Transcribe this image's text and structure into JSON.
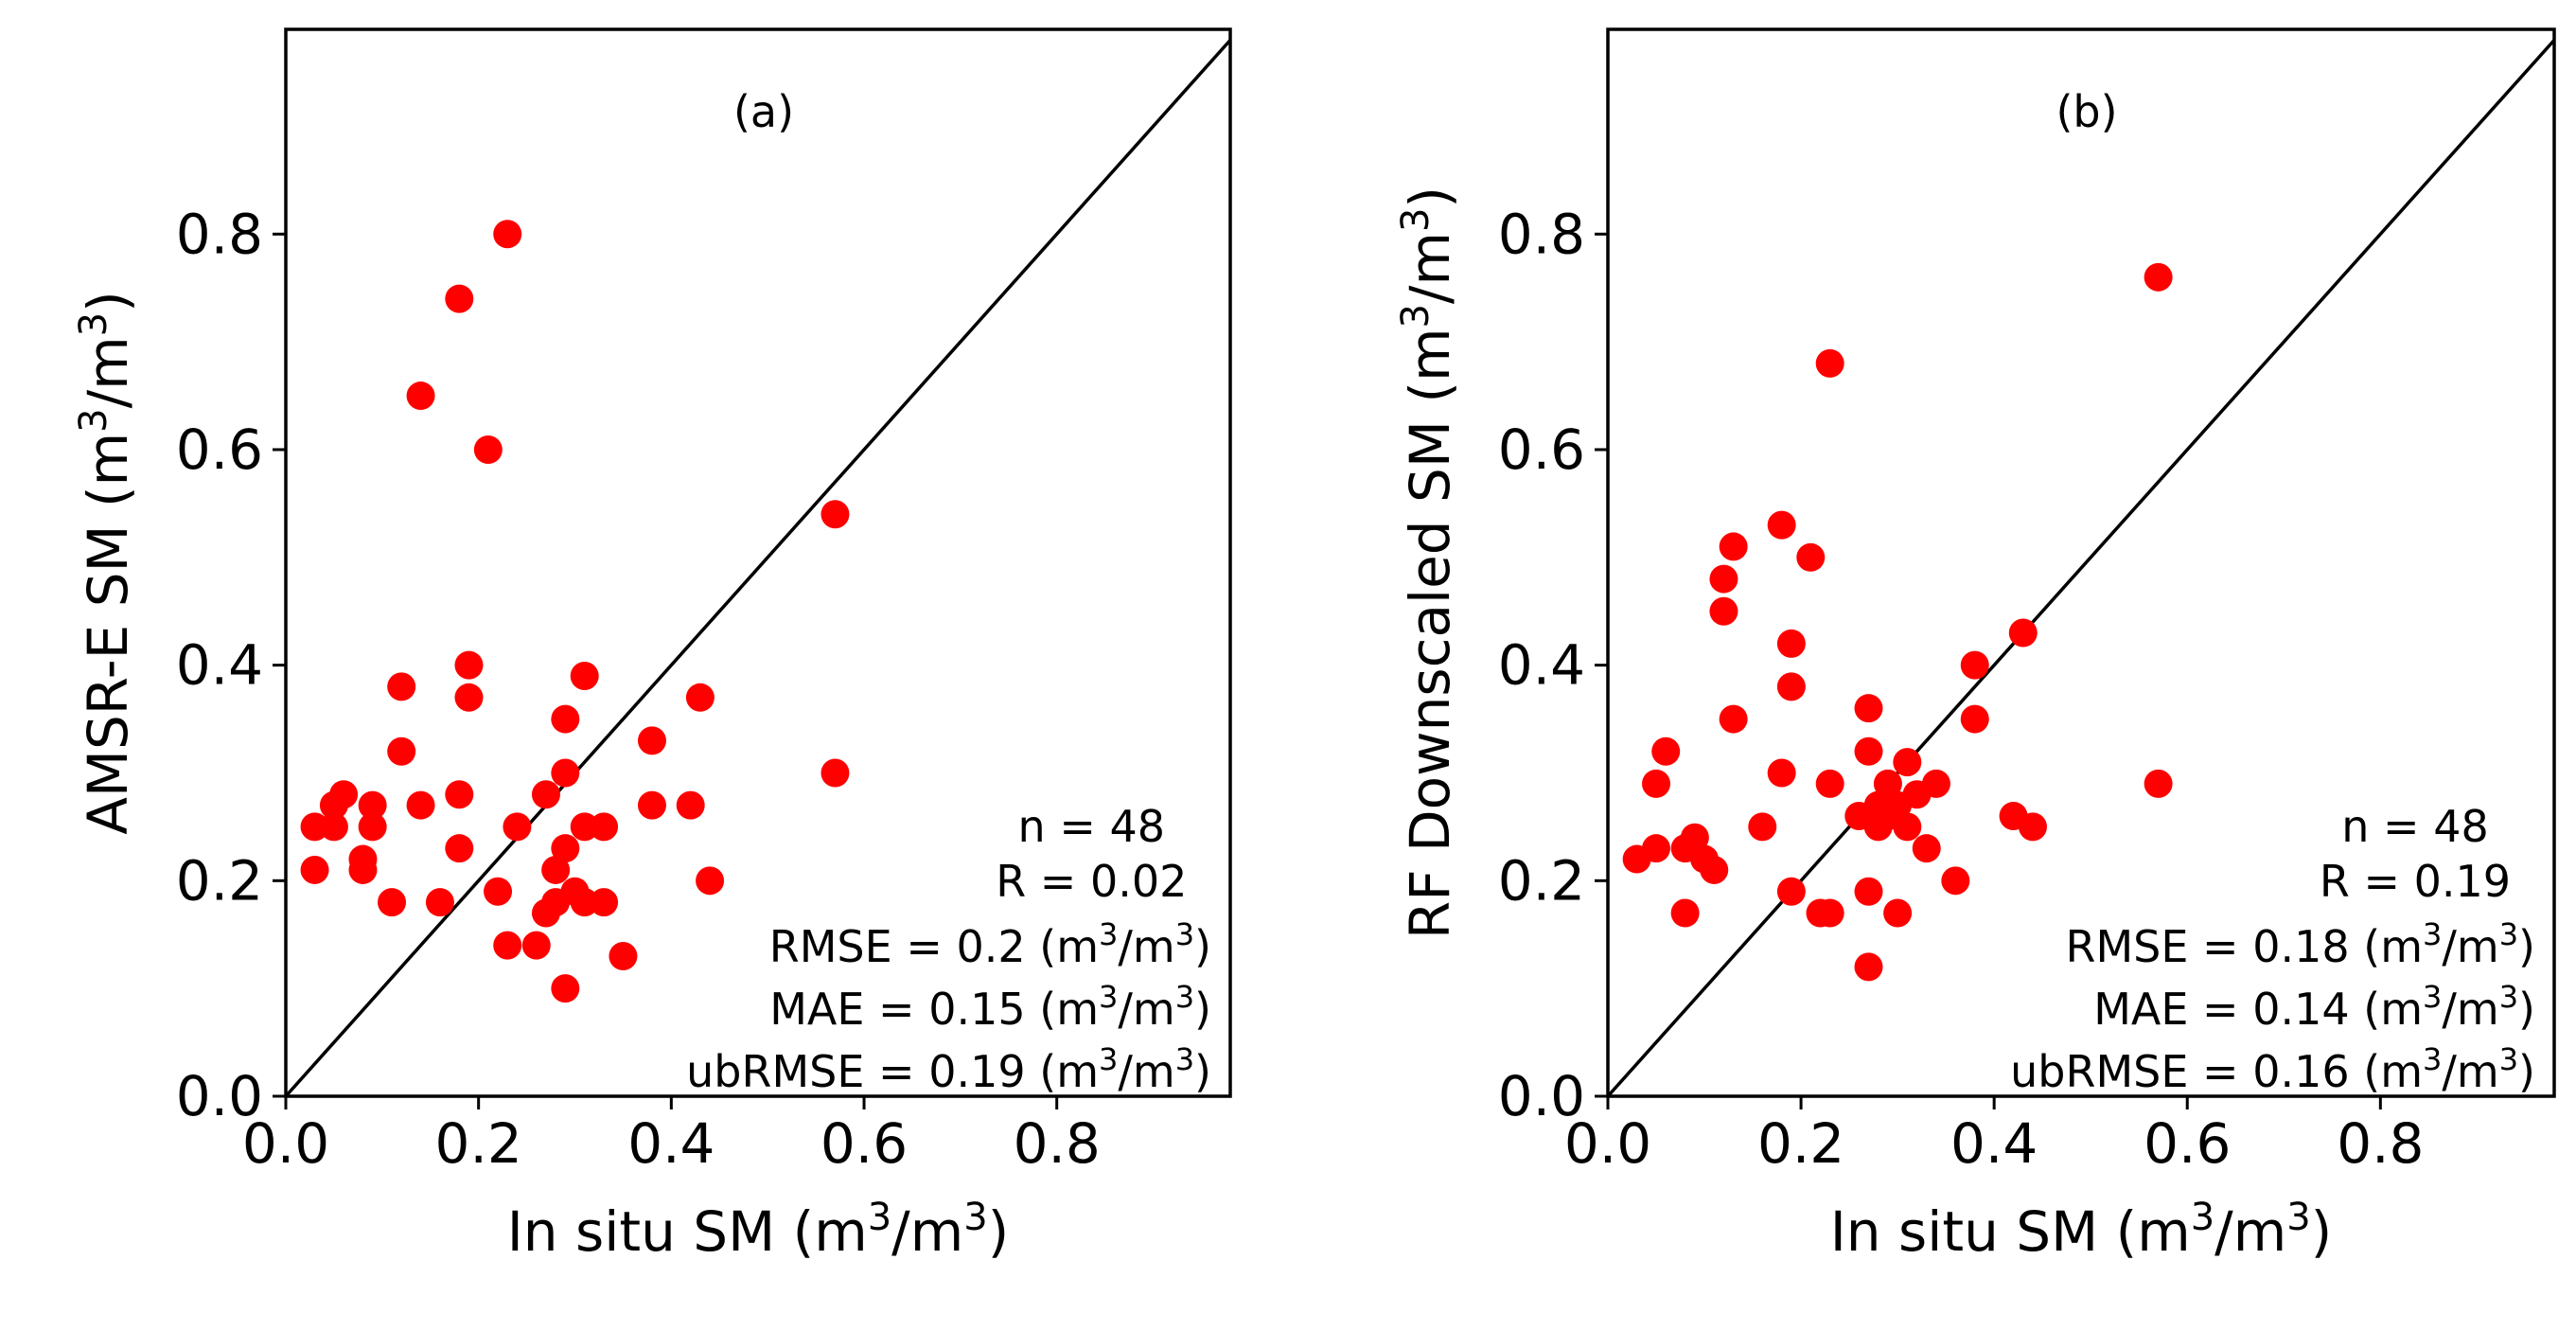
{
  "chart_data": [
    {
      "type": "scatter",
      "panel_label": "(a)",
      "xlabel": "In situ SM (m",
      "xlabel_sup": "3",
      "xlabel_mid": "/m",
      "xlabel_sup2": "3",
      "xlabel_end": ")",
      "ylabel": "AMSR-E SM (m",
      "ylabel_sup": "3",
      "ylabel_mid": "/m",
      "ylabel_sup2": "3",
      "ylabel_end": ")",
      "xlim": [
        0,
        0.98
      ],
      "ylim": [
        0,
        0.99
      ],
      "xticks": [
        "0.0",
        "0.2",
        "0.4",
        "0.6",
        "0.8"
      ],
      "yticks": [
        "0.0",
        "0.2",
        "0.4",
        "0.6",
        "0.8"
      ],
      "identity_line": true,
      "marker_color": "#ff0000",
      "stats": {
        "n": "n = 48",
        "r": "R = 0.02",
        "rmse": "RMSE = 0.2 (m",
        "mae": "MAE = 0.15 (m",
        "ubrmse": "ubRMSE = 0.19 (m",
        "unit_sup": "3",
        "unit_mid": "/m",
        "unit_end": ")"
      },
      "points": [
        [
          0.23,
          0.8
        ],
        [
          0.18,
          0.74
        ],
        [
          0.14,
          0.65
        ],
        [
          0.21,
          0.6
        ],
        [
          0.57,
          0.54
        ],
        [
          0.19,
          0.4
        ],
        [
          0.12,
          0.38
        ],
        [
          0.31,
          0.39
        ],
        [
          0.19,
          0.37
        ],
        [
          0.43,
          0.37
        ],
        [
          0.29,
          0.35
        ],
        [
          0.38,
          0.33
        ],
        [
          0.12,
          0.32
        ],
        [
          0.29,
          0.3
        ],
        [
          0.57,
          0.3
        ],
        [
          0.06,
          0.28
        ],
        [
          0.18,
          0.28
        ],
        [
          0.27,
          0.28
        ],
        [
          0.05,
          0.27
        ],
        [
          0.09,
          0.27
        ],
        [
          0.14,
          0.27
        ],
        [
          0.38,
          0.27
        ],
        [
          0.42,
          0.27
        ],
        [
          0.03,
          0.25
        ],
        [
          0.05,
          0.25
        ],
        [
          0.09,
          0.25
        ],
        [
          0.24,
          0.25
        ],
        [
          0.31,
          0.25
        ],
        [
          0.33,
          0.25
        ],
        [
          0.18,
          0.23
        ],
        [
          0.29,
          0.23
        ],
        [
          0.08,
          0.22
        ],
        [
          0.03,
          0.21
        ],
        [
          0.08,
          0.21
        ],
        [
          0.28,
          0.21
        ],
        [
          0.44,
          0.2
        ],
        [
          0.22,
          0.19
        ],
        [
          0.11,
          0.18
        ],
        [
          0.16,
          0.18
        ],
        [
          0.28,
          0.18
        ],
        [
          0.31,
          0.18
        ],
        [
          0.33,
          0.18
        ],
        [
          0.27,
          0.17
        ],
        [
          0.23,
          0.14
        ],
        [
          0.26,
          0.14
        ],
        [
          0.35,
          0.13
        ],
        [
          0.29,
          0.1
        ],
        [
          0.3,
          0.19
        ]
      ]
    },
    {
      "type": "scatter",
      "panel_label": "(b)",
      "xlabel": "In situ SM (m",
      "xlabel_sup": "3",
      "xlabel_mid": "/m",
      "xlabel_sup2": "3",
      "xlabel_end": ")",
      "ylabel": "RF Downscaled SM (m",
      "ylabel_sup": "3",
      "ylabel_mid": "/m",
      "ylabel_sup2": "3",
      "ylabel_end": ")",
      "xlim": [
        0,
        0.98
      ],
      "ylim": [
        0,
        0.99
      ],
      "xticks": [
        "0.0",
        "0.2",
        "0.4",
        "0.6",
        "0.8"
      ],
      "yticks": [
        "0.0",
        "0.2",
        "0.4",
        "0.6",
        "0.8"
      ],
      "identity_line": true,
      "marker_color": "#ff0000",
      "stats": {
        "n": "n = 48",
        "r": "R = 0.19",
        "rmse": "RMSE = 0.18 (m",
        "mae": "MAE = 0.14 (m",
        "ubrmse": "ubRMSE = 0.16 (m",
        "unit_sup": "3",
        "unit_mid": "/m",
        "unit_end": ")"
      },
      "points": [
        [
          0.57,
          0.76
        ],
        [
          0.23,
          0.68
        ],
        [
          0.18,
          0.53
        ],
        [
          0.13,
          0.51
        ],
        [
          0.21,
          0.5
        ],
        [
          0.12,
          0.48
        ],
        [
          0.12,
          0.45
        ],
        [
          0.43,
          0.43
        ],
        [
          0.19,
          0.42
        ],
        [
          0.38,
          0.4
        ],
        [
          0.19,
          0.38
        ],
        [
          0.27,
          0.36
        ],
        [
          0.13,
          0.35
        ],
        [
          0.38,
          0.35
        ],
        [
          0.06,
          0.32
        ],
        [
          0.27,
          0.32
        ],
        [
          0.31,
          0.31
        ],
        [
          0.18,
          0.3
        ],
        [
          0.05,
          0.29
        ],
        [
          0.23,
          0.29
        ],
        [
          0.57,
          0.29
        ],
        [
          0.29,
          0.29
        ],
        [
          0.34,
          0.29
        ],
        [
          0.28,
          0.27
        ],
        [
          0.3,
          0.27
        ],
        [
          0.42,
          0.26
        ],
        [
          0.16,
          0.25
        ],
        [
          0.28,
          0.25
        ],
        [
          0.31,
          0.25
        ],
        [
          0.44,
          0.25
        ],
        [
          0.09,
          0.24
        ],
        [
          0.08,
          0.23
        ],
        [
          0.05,
          0.23
        ],
        [
          0.03,
          0.22
        ],
        [
          0.33,
          0.23
        ],
        [
          0.1,
          0.22
        ],
        [
          0.11,
          0.21
        ],
        [
          0.36,
          0.2
        ],
        [
          0.19,
          0.19
        ],
        [
          0.27,
          0.19
        ],
        [
          0.22,
          0.17
        ],
        [
          0.3,
          0.17
        ],
        [
          0.08,
          0.17
        ],
        [
          0.23,
          0.17
        ],
        [
          0.27,
          0.12
        ],
        [
          0.29,
          0.26
        ],
        [
          0.32,
          0.28
        ],
        [
          0.26,
          0.26
        ]
      ]
    }
  ]
}
